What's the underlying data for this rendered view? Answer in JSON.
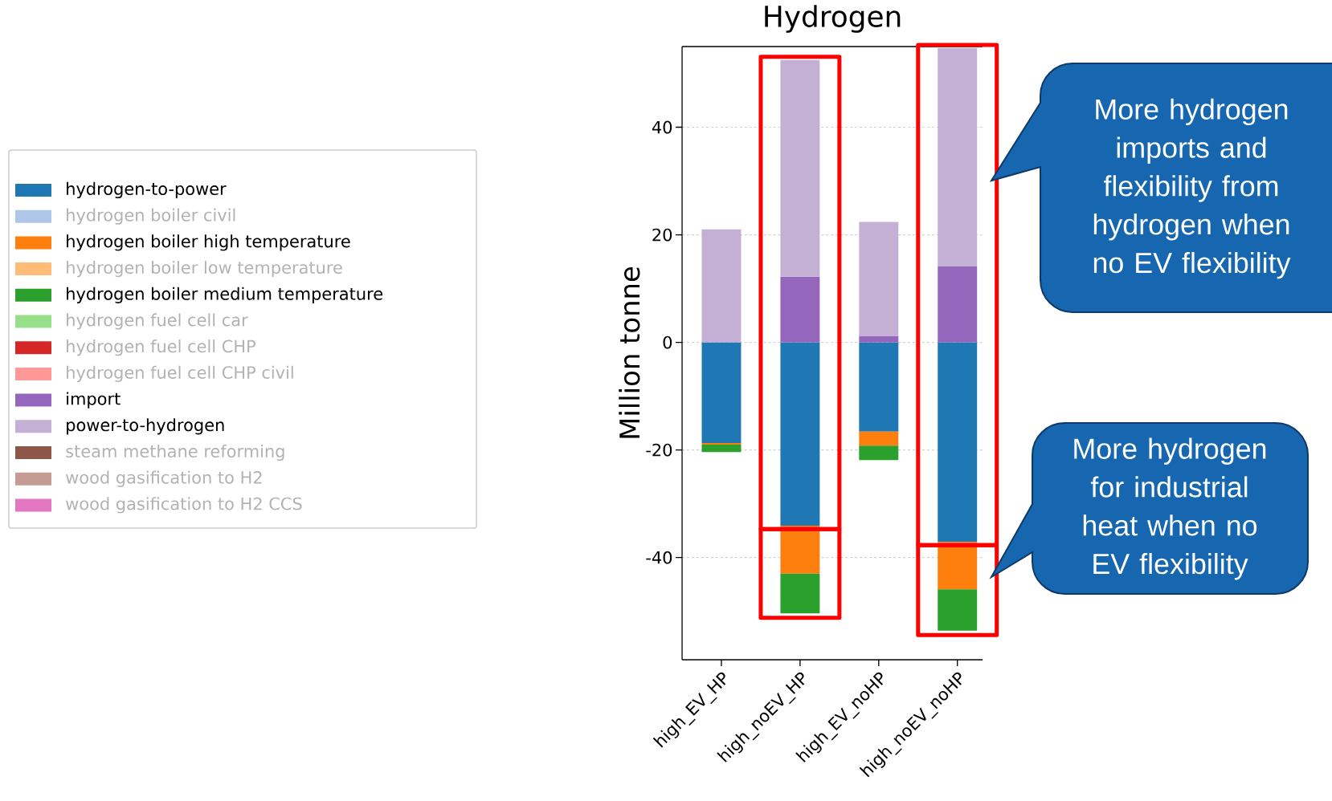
{
  "chart_data": {
    "type": "bar",
    "title": "Hydrogen",
    "ylabel": "Million tonne",
    "categories": [
      "high_EV_HP",
      "high_noEV_HP",
      "high_EV_noHP",
      "high_noEV_noHP"
    ],
    "stacked": true,
    "series": [
      {
        "name": "hydrogen-to-power",
        "color": "#1f77b4",
        "values": [
          -18.7,
          -34.1,
          -16.6,
          -37.1
        ]
      },
      {
        "name": "hydrogen boiler civil",
        "color": "#aec7e8",
        "values": [
          null,
          null,
          null,
          null
        ]
      },
      {
        "name": "hydrogen boiler high temperature",
        "color": "#ff7f0e",
        "values": [
          -0.3,
          -8.9,
          -2.6,
          -8.8
        ]
      },
      {
        "name": "hydrogen boiler low temperature",
        "color": "#ffbb78",
        "values": [
          null,
          null,
          null,
          null
        ]
      },
      {
        "name": "hydrogen boiler medium temperature",
        "color": "#2ca02c",
        "values": [
          -1.4,
          -7.4,
          -2.7,
          -7.7
        ]
      },
      {
        "name": "hydrogen fuel cell car",
        "color": "#98df8a",
        "values": [
          null,
          null,
          null,
          null
        ]
      },
      {
        "name": "hydrogen fuel cell CHP",
        "color": "#d62728",
        "values": [
          null,
          null,
          null,
          null
        ]
      },
      {
        "name": "hydrogen fuel cell CHP civil",
        "color": "#ff9896",
        "values": [
          null,
          null,
          null,
          null
        ]
      },
      {
        "name": "import",
        "color": "#9467bd",
        "values": [
          0,
          12.2,
          1.2,
          14.1
        ]
      },
      {
        "name": "power-to-hydrogen",
        "color": "#c5b0d5",
        "values": [
          21.0,
          40.3,
          21.2,
          40.6
        ]
      },
      {
        "name": "steam methane reforming",
        "color": "#8c564b",
        "values": [
          null,
          null,
          null,
          null
        ]
      },
      {
        "name": "wood gasification to H2",
        "color": "#c49c94",
        "values": [
          null,
          null,
          null,
          null
        ]
      },
      {
        "name": "wood gasification to H2 CCS",
        "color": "#e377c2",
        "values": [
          null,
          null,
          null,
          null
        ]
      }
    ],
    "ylim": [
      -59,
      55
    ],
    "yticks": [
      -40,
      -20,
      0,
      20,
      40
    ],
    "grid": "y",
    "legend": "left",
    "annotations": [
      "More hydrogen imports and flexibility from hydrogen when no EV flexibility",
      "More hydrogen for industrial heat when no EV flexibility"
    ]
  }
}
